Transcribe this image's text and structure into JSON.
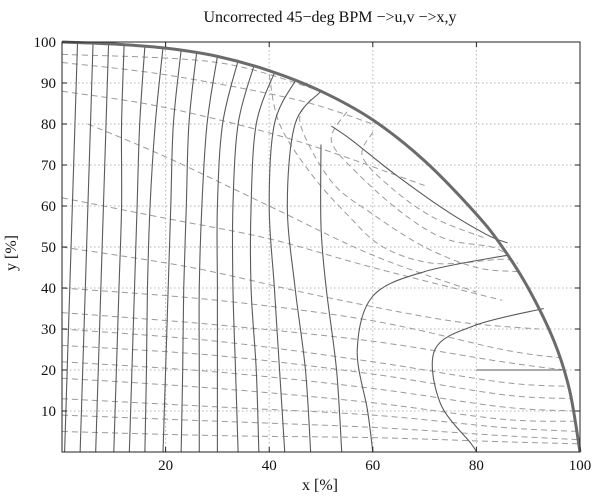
{
  "chart_data": {
    "type": "line",
    "title": "Uncorrected 45−deg BPM −>u,v −>x,y",
    "xlabel": "x [%]",
    "ylabel": "y [%]",
    "xlim": [
      0,
      100
    ],
    "ylim": [
      0,
      100
    ],
    "xticks": [
      "20",
      "40",
      "60",
      "80",
      "100"
    ],
    "yticks": [
      "10",
      "20",
      "30",
      "40",
      "50",
      "60",
      "70",
      "80",
      "90",
      "100"
    ],
    "grid": "dotted",
    "boundary": {
      "name": "boundary",
      "points": [
        [
          0,
          100
        ],
        [
          10,
          99.5
        ],
        [
          20,
          98.5
        ],
        [
          30,
          96.5
        ],
        [
          40,
          93
        ],
        [
          50,
          88
        ],
        [
          60,
          81
        ],
        [
          70,
          71
        ],
        [
          80,
          58
        ],
        [
          85,
          50
        ],
        [
          90,
          40
        ],
        [
          95,
          27
        ],
        [
          98,
          15
        ],
        [
          100,
          0
        ]
      ]
    },
    "solid_series": [
      {
        "name": "u-contour",
        "points": [
          [
            3,
            100
          ],
          [
            2.5,
            80
          ],
          [
            2,
            60
          ],
          [
            1.5,
            40
          ],
          [
            1,
            20
          ],
          [
            0.5,
            0
          ]
        ]
      },
      {
        "name": "u-contour",
        "points": [
          [
            6,
            100
          ],
          [
            5.5,
            80
          ],
          [
            5,
            60
          ],
          [
            4.5,
            40
          ],
          [
            4,
            20
          ],
          [
            3.5,
            0
          ]
        ]
      },
      {
        "name": "u-contour",
        "points": [
          [
            9,
            100
          ],
          [
            8.5,
            80
          ],
          [
            8,
            60
          ],
          [
            7.5,
            40
          ],
          [
            7,
            20
          ],
          [
            6.5,
            0
          ]
        ]
      },
      {
        "name": "u-contour",
        "points": [
          [
            12,
            99.5
          ],
          [
            11.5,
            80
          ],
          [
            11.5,
            60
          ],
          [
            11,
            40
          ],
          [
            10.5,
            20
          ],
          [
            10,
            0
          ]
        ]
      },
      {
        "name": "u-contour",
        "points": [
          [
            16,
            99
          ],
          [
            15,
            80
          ],
          [
            14.5,
            60
          ],
          [
            14,
            40
          ],
          [
            13.5,
            20
          ],
          [
            13,
            0
          ]
        ]
      },
      {
        "name": "u-contour",
        "points": [
          [
            19.5,
            98.7
          ],
          [
            18,
            80
          ],
          [
            17,
            60
          ],
          [
            16.5,
            40
          ],
          [
            16.3,
            20
          ],
          [
            16,
            0
          ]
        ]
      },
      {
        "name": "u-contour",
        "points": [
          [
            23,
            98
          ],
          [
            21.5,
            80
          ],
          [
            21,
            60
          ],
          [
            20.5,
            40
          ],
          [
            20,
            20
          ],
          [
            19.5,
            0
          ]
        ]
      },
      {
        "name": "u-contour",
        "points": [
          [
            26,
            97.5
          ],
          [
            24.5,
            80
          ],
          [
            24,
            60
          ],
          [
            23.5,
            40
          ],
          [
            23.3,
            20
          ],
          [
            23,
            0
          ]
        ]
      },
      {
        "name": "u-contour",
        "points": [
          [
            30,
            96.5
          ],
          [
            28,
            80
          ],
          [
            27,
            60
          ],
          [
            26.5,
            40
          ],
          [
            26.5,
            20
          ],
          [
            26.5,
            0
          ]
        ]
      },
      {
        "name": "u-contour",
        "points": [
          [
            34,
            95.5
          ],
          [
            31,
            80
          ],
          [
            30,
            60
          ],
          [
            30,
            40
          ],
          [
            30,
            20
          ],
          [
            30,
            0
          ]
        ]
      },
      {
        "name": "u-contour",
        "points": [
          [
            37,
            94
          ],
          [
            34,
            80
          ],
          [
            33,
            60
          ],
          [
            33,
            40
          ],
          [
            33.5,
            20
          ],
          [
            34,
            0
          ]
        ]
      },
      {
        "name": "u-contour",
        "points": [
          [
            41,
            92.5
          ],
          [
            37.5,
            80
          ],
          [
            36.5,
            60
          ],
          [
            36.5,
            40
          ],
          [
            37.5,
            20
          ],
          [
            38,
            0
          ]
        ]
      },
      {
        "name": "u-contour",
        "points": [
          [
            45,
            90.5
          ],
          [
            41,
            80
          ],
          [
            40,
            60
          ],
          [
            41,
            40
          ],
          [
            42,
            20
          ],
          [
            43,
            0
          ]
        ]
      },
      {
        "name": "u-contour",
        "points": [
          [
            50,
            88
          ],
          [
            45,
            80
          ],
          [
            43.5,
            60
          ],
          [
            45,
            40
          ],
          [
            47,
            20
          ],
          [
            48,
            0
          ]
        ]
      },
      {
        "name": "u-contour",
        "points": [
          [
            50,
            75
          ],
          [
            50,
            55
          ],
          [
            51,
            40
          ],
          [
            53,
            20
          ],
          [
            54,
            0
          ]
        ]
      },
      {
        "name": "u-contour",
        "points": [
          [
            86,
            48
          ],
          [
            70,
            44
          ],
          [
            60,
            38
          ],
          [
            57,
            25
          ],
          [
            59,
            10
          ],
          [
            60,
            0
          ]
        ]
      },
      {
        "name": "u-contour",
        "points": [
          [
            93,
            35
          ],
          [
            80,
            31
          ],
          [
            72,
            25
          ],
          [
            73,
            12
          ],
          [
            79,
            2
          ],
          [
            80,
            0
          ]
        ]
      },
      {
        "name": "v-contour",
        "points": [
          [
            52,
            79.5
          ],
          [
            56,
            76
          ],
          [
            64,
            68
          ],
          [
            74,
            59
          ],
          [
            82,
            53
          ],
          [
            86,
            51
          ]
        ]
      },
      {
        "name": "v-contour",
        "points": [
          [
            96.5,
            20
          ],
          [
            92,
            20
          ],
          [
            84,
            20
          ],
          [
            80,
            20
          ]
        ]
      }
    ],
    "dashed_series": [
      {
        "name": "v-contour",
        "points": [
          [
            0,
            97
          ],
          [
            30,
            95
          ],
          [
            50,
            88
          ]
        ]
      },
      {
        "name": "v-contour",
        "points": [
          [
            0,
            95
          ],
          [
            20,
            92
          ],
          [
            45,
            86
          ],
          [
            60,
            80
          ]
        ]
      },
      {
        "name": "v-contour",
        "points": [
          [
            0,
            88
          ],
          [
            20,
            84
          ],
          [
            45,
            76
          ],
          [
            70,
            65
          ]
        ]
      },
      {
        "name": "v-contour",
        "points": [
          [
            5,
            80
          ],
          [
            20,
            72
          ],
          [
            40,
            60
          ],
          [
            60,
            48
          ],
          [
            80,
            39
          ]
        ]
      },
      {
        "name": "v-contour",
        "points": [
          [
            0,
            62
          ],
          [
            20,
            57
          ],
          [
            40,
            52
          ],
          [
            60,
            45
          ],
          [
            85,
            37
          ]
        ]
      },
      {
        "name": "v-contour",
        "points": [
          [
            0,
            50
          ],
          [
            25,
            45
          ],
          [
            50,
            38
          ],
          [
            75,
            32
          ],
          [
            92,
            30
          ]
        ]
      },
      {
        "name": "v-contour",
        "points": [
          [
            0,
            40
          ],
          [
            30,
            37
          ],
          [
            60,
            32
          ],
          [
            85,
            25
          ],
          [
            96,
            23
          ]
        ]
      },
      {
        "name": "v-contour",
        "points": [
          [
            0,
            34
          ],
          [
            30,
            31
          ],
          [
            60,
            27
          ],
          [
            85,
            22
          ],
          [
            97,
            20
          ]
        ]
      },
      {
        "name": "v-contour",
        "points": [
          [
            0,
            30
          ],
          [
            30,
            27
          ],
          [
            60,
            22
          ],
          [
            85,
            17
          ],
          [
            98,
            16
          ]
        ]
      },
      {
        "name": "v-contour",
        "points": [
          [
            0,
            26
          ],
          [
            30,
            23.5
          ],
          [
            60,
            19
          ],
          [
            85,
            14
          ],
          [
            98.5,
            13
          ]
        ]
      },
      {
        "name": "v-contour",
        "points": [
          [
            0,
            22
          ],
          [
            30,
            19.5
          ],
          [
            60,
            15.5
          ],
          [
            85,
            11
          ],
          [
            99,
            10
          ]
        ]
      },
      {
        "name": "v-contour",
        "points": [
          [
            0,
            18
          ],
          [
            30,
            15.5
          ],
          [
            60,
            12
          ],
          [
            85,
            8
          ],
          [
            99.5,
            7.5
          ]
        ]
      },
      {
        "name": "v-contour",
        "points": [
          [
            0,
            13
          ],
          [
            30,
            11
          ],
          [
            60,
            9
          ],
          [
            85,
            6
          ],
          [
            100,
            5
          ]
        ]
      },
      {
        "name": "v-contour",
        "points": [
          [
            0,
            9
          ],
          [
            30,
            7.5
          ],
          [
            60,
            6
          ],
          [
            85,
            4
          ],
          [
            100,
            3
          ]
        ]
      },
      {
        "name": "v-contour",
        "points": [
          [
            0,
            5
          ],
          [
            30,
            4
          ],
          [
            60,
            3.5
          ],
          [
            85,
            2.5
          ],
          [
            100,
            2
          ]
        ]
      },
      {
        "name": "u-contour",
        "points": [
          [
            40,
            92
          ],
          [
            42,
            80
          ],
          [
            48,
            68
          ],
          [
            55,
            58
          ],
          [
            62,
            50
          ],
          [
            72,
            46
          ],
          [
            85,
            47
          ],
          [
            88,
            46
          ]
        ]
      },
      {
        "name": "u-contour",
        "points": [
          [
            55,
            83
          ],
          [
            52,
            76
          ],
          [
            57,
            68
          ],
          [
            66,
            58
          ],
          [
            74,
            52
          ],
          [
            83,
            50
          ],
          [
            86,
            48
          ]
        ]
      },
      {
        "name": "u-contour",
        "points": [
          [
            60,
            78
          ],
          [
            58,
            72
          ],
          [
            64,
            64
          ],
          [
            72,
            57
          ],
          [
            82,
            52
          ]
        ]
      },
      {
        "name": "u-contour",
        "points": [
          [
            48,
            86
          ],
          [
            46,
            80
          ],
          [
            52,
            66
          ],
          [
            60,
            58
          ],
          [
            70,
            50
          ],
          [
            80,
            45
          ],
          [
            88,
            44
          ]
        ]
      }
    ],
    "colors": {
      "solid": "#5a5a5a",
      "dashed": "#9a9a9a",
      "boundary": "#6b6b6b",
      "grid": "#b5b5b5",
      "axes": "#222222"
    }
  }
}
